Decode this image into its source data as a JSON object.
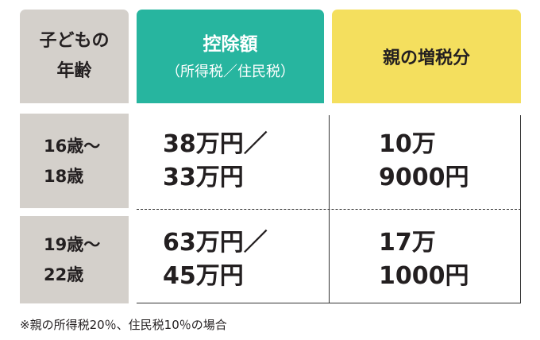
{
  "headers": {
    "age": [
      "子どもの",
      "年齢"
    ],
    "deduction": [
      "控除額",
      "（所得税／住民税）"
    ],
    "tax_increase": "親の増税分"
  },
  "rows": [
    {
      "age": [
        "16歳～",
        "18歳"
      ],
      "deduction": [
        "38万円／",
        "33万円"
      ],
      "tax_increase": [
        "10万",
        "9000円"
      ]
    },
    {
      "age": [
        "19歳～",
        "22歳"
      ],
      "deduction": [
        "63万円／",
        "45万円"
      ],
      "tax_increase": [
        "17万",
        "1000円"
      ]
    }
  ],
  "footnote": "※親の所得税20％、住民税10％の場合",
  "colors": {
    "age": "#d4d0cb",
    "deduction": "#27b59f",
    "tax_increase": "#f4df5e"
  }
}
